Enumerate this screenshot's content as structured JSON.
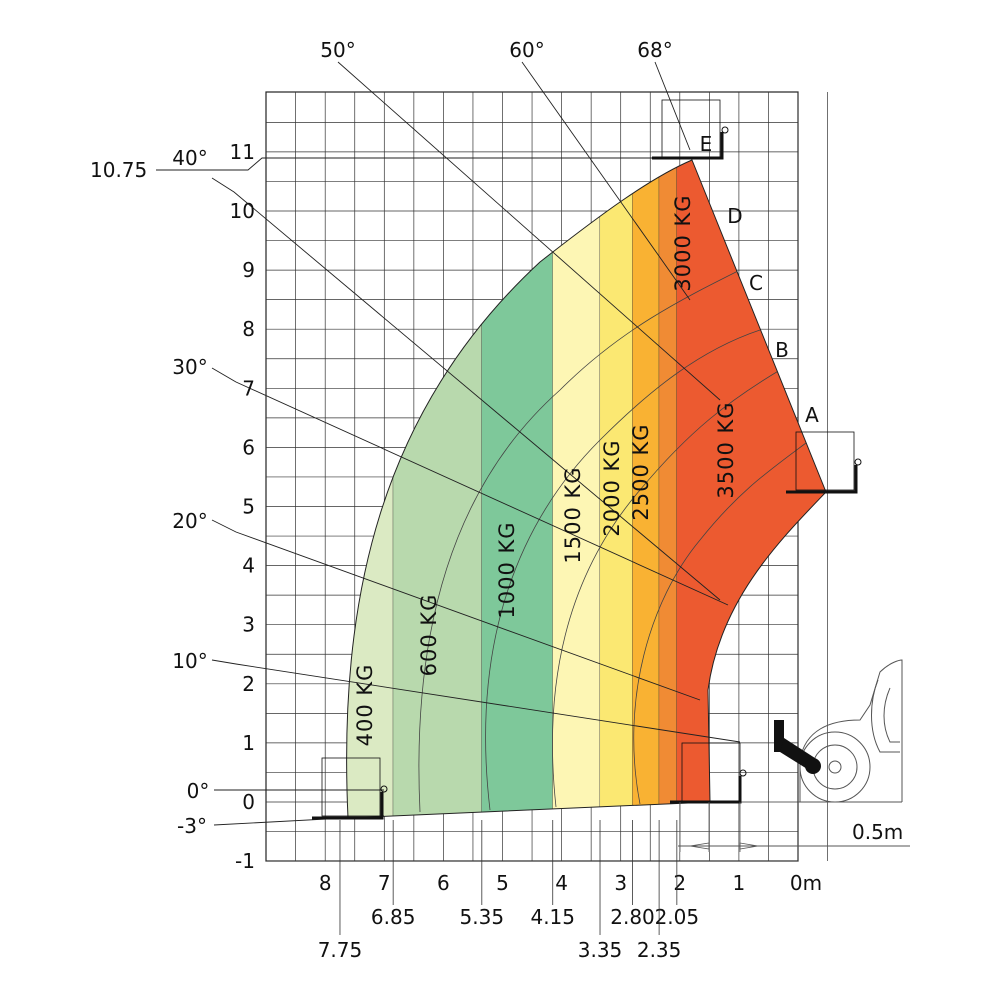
{
  "chart_data": {
    "type": "load-chart",
    "x_ticks": [
      "8",
      "7",
      "6",
      "5",
      "4",
      "3",
      "2",
      "1",
      "0m"
    ],
    "y_ticks": [
      "11",
      "10",
      "9",
      "8",
      "7",
      "6",
      "5",
      "4",
      "3",
      "2",
      "1",
      "0",
      "-1"
    ],
    "x_range": [
      -0.5,
      8.5
    ],
    "y_range": [
      -1,
      12
    ],
    "x_markers": [
      {
        "label": "6.85",
        "x": 6.85
      },
      {
        "label": "5.35",
        "x": 5.35
      },
      {
        "label": "4.15",
        "x": 4.15
      },
      {
        "label": "2.80",
        "x": 2.8
      },
      {
        "label": "2.05",
        "x": 2.05
      },
      {
        "label": "7.75",
        "x": 7.75
      },
      {
        "label": "3.35",
        "x": 3.35
      },
      {
        "label": "2.35",
        "x": 2.35
      }
    ],
    "max_height_label": "10.75",
    "max_height": 10.75,
    "offset_label": "0.5m",
    "boom_angles": [
      {
        "label": "50°",
        "deg": 50
      },
      {
        "label": "60°",
        "deg": 60
      },
      {
        "label": "68°",
        "deg": 68
      },
      {
        "label": "40°",
        "deg": 40
      },
      {
        "label": "30°",
        "deg": 30
      },
      {
        "label": "20°",
        "deg": 20
      },
      {
        "label": "10°",
        "deg": 10
      },
      {
        "label": "0°",
        "deg": 0
      },
      {
        "label": "-3°",
        "deg": -3
      }
    ],
    "extension_positions": [
      "A",
      "B",
      "C",
      "D",
      "E"
    ],
    "load_zones": [
      {
        "label": "400 KG",
        "x_from": 7.75,
        "x_to": 6.85,
        "color": "#dbeac3"
      },
      {
        "label": "600 KG",
        "x_from": 6.85,
        "x_to": 5.35,
        "color": "#b8d9ad"
      },
      {
        "label": "1000 KG",
        "x_from": 5.35,
        "x_to": 4.15,
        "color": "#7ec89a"
      },
      {
        "label": "1500 KG",
        "x_from": 4.15,
        "x_to": 3.35,
        "color": "#fdf6b4"
      },
      {
        "label": "2000 KG",
        "x_from": 3.35,
        "x_to": 2.8,
        "color": "#fbe872"
      },
      {
        "label": "2500 KG",
        "x_from": 2.8,
        "x_to": 2.35,
        "color": "#f9b233"
      },
      {
        "label": "3000 KG",
        "x_from": 2.35,
        "x_to": 2.05,
        "color": "#f08b34"
      },
      {
        "label": "3500 KG",
        "x_from": 2.05,
        "x_to": 0.0,
        "color": "#ec5a30"
      }
    ]
  }
}
